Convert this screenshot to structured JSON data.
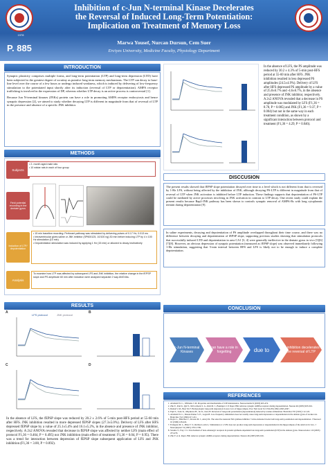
{
  "header": {
    "title_lines": [
      "Inhibition of c-Jun N-terminal Kinase Decelerates",
      "the Reversal of Induced Long-Term Potentiation:",
      "Implication on Treatment of Memory Loss"
    ],
    "poster_number": "P. 885",
    "authors": "Marwa Yousef, Nurcan Dursun, Cem Suer",
    "affiliation": "Erciyes University, Medicine Faculty, Physiology Department",
    "logo_left_year": "1978",
    "colors": {
      "header_blue": "#2a5fa8",
      "logo_red": "#c0302a"
    }
  },
  "introduction": {
    "heading": "INTRODUCTION",
    "paragraphs": [
      "Synaptic plasticity comprises multiple forms, and long-term potentiation (LTP) and long-term depression (LTD) have been subjected to the greatest degree of scrutiny as putative long term memory mechanisms. The LTP can decay to base-line level over the course of a few hours or undergo induced weakness, which is induced by delivering of low-frequency stimulation to the potentiated input shortly after its induction (reversal of LTP or depotentiation). AMPA receptor trafficking is involved in the expression of DP, whereas whether LTP decay is an active process is controversial [1].",
      "Because Jun N-terminal kinases (JNKs) protein can have a role in promoting AMPA receptor endocytosis and hence synaptic depression [2], we aimed to study whether decaying LTP is different in magnitude from that of reversal of LTP in the presence and absence of a specific JNK inhibitor."
    ]
  },
  "methods": {
    "heading": "METHODS",
    "subjects_label": "Subjects",
    "subjects_items": [
      "2- month aged male rats",
      "10 wistar rats in each of four group"
    ],
    "recording_label": "Field potential recording in the dentate gyrus",
    "induction_label": "Induction of LTP/ depotentiation",
    "induction_items": [
      "15 min baseline recording: Perforant pathway was stimulated by delivering pulses of 0.17 Hz, 0.013 ms",
      "Intraventricular gives saline or JNK inhibitor (SP600125, 10/100 ng) 30 min before inducing LTP by 4 x 100 Hz stimulation (10 min)",
      "Depotentiation stimulation was induced by applying 1 Hz (15 min) or allowed to decay instinctively"
    ],
    "analysis_label": "Analysis",
    "analysis_item": "To examine how LTP was affected by subsequent LFS and JNK inhibition, the relative change in the fEPSP slope and PS amplitude 60 min after induction were analyzed separate 2 way ANOVAs."
  },
  "results": {
    "heading": "RESULTS",
    "panel_a_label": "A",
    "panel_b_label": "B",
    "panel_c_label": "C",
    "panel_d_label": "D",
    "legend_control": "LFS protocol",
    "legend_jnk": "JNK protocol",
    "text": "In the absence of LFS, the fEPSP slope was reduced by 20.2 ± 2.6% of 5-min post-HFS period at 55-60 min after HFS. JNK inhibition resulted in more depressed fEPSP slopes (27.3±5.0%). Delivery of LFS after HFS depressed fEPSP slope by a value of 25.1±5.4% and 16.1±5.2%, in the absence and presence of JNK inhibitor, respectively. A 2x2 ANOVA revealed that decrease in fEPSP slope was affected by neither LFS (main effect of protocol F1,36 = 0.464, P = 0.495) nor JNK inhibition (main effect of treatment: F1,36 = 0.04, P = 0.95). There was a trend for interaction between depression of fEPSP slope subsequent application of LFS and JNK inhibition (F1,36 = 3.00, P = 0.092)."
  },
  "right_top_text": "In the absence of LFS, the PS amplitude was reduced by 30.2 ± 4.3% of 5-min post-HFS period at 55-60 min after HFS. JNK inhibition resulted in less depressed PS amplitudes (24.5±4.9%). Delivery of LFS after HFS depressed PS amplitude by a value of 25.0±6.7% and -4.6±6.7%, in the absence and presence of JNK inhibitor, respectively. A 2x2 ANOVA revealed that a decrease in PS amplitude was modulated by LFS (F1,36 = 8.78, P = 0.005) and JNK (F1,36 = 9.37, P = 0.004) but not in the same way in each treatment condition, as shown by a significant interaction between protocol and treatment (F1,36 = 4.29, P = 0.046).",
  "discussion": {
    "heading": "DISCCUSION",
    "paragraphs": [
      "The present results showed that fEPSP slope potentiation decayed over time to a level which is not different from that is reversed by 1-Hz LFS, without being affected by the inhibition of JNK, although decaying PS-LTP is different in magnitude from that of reversal of LTP when JNK activation is inhibited before LTP induction. These findings supports that depotentiation of PS-LTP could be mediated by active processes involving in JNK activation in contrast to LTP decay. One recent study could explain the present results because Rap2-JNK pathway has been shown to controls synaptic removal of AMPA-Rs with long cytoplasmic termini during depotentiation [9].",
      "In saline experiments, decaying and depotentiation of PS amplitude overlapped throughout their time course, and there was no difference between decaying and depotentiation of fEPSP slope, supporting previous studies showing that stimulation protocols that successfully induced LTD and depotentiation in area CA1 [3, 4] were generally ineffective in the dentate gyrus in vivo [5][6][7][8]. However, an obvious depression of synaptic potentiation (measured as fEPSP slope) was observed immediately following 1-Hz stimulation, suggesting that 5-min interval between HFS and LFS is likely not to be enough to induce a complete depotentiation."
    ]
  },
  "conclusion": {
    "heading": "CONCLUSION",
    "steps": [
      "c-Jun N-terminal Kinases",
      "can have a role in forgetting",
      "due to",
      "its inhibition decelerates the reversal of LTP"
    ]
  },
  "references": {
    "heading": "REFERENCES",
    "items": [
      "Abraham W. C., Williams J. M. Properties and mechanisms of LTP maintenance. Neuroscientist 9 (2003) 463-474.",
      "Zhu Y., Pak D., Qin Y., McCormack S. G., Kim M. J., Baumgart J. P. Rap2-JNK removes synaptic AMPA receptors during depotentiation. Neuron 46 (2005) 905-916.",
      "Dudek S. M., Bear M. F. Homosynaptic long-term depression in area CA1 of hippocampus. Proc Natl Acad Sci USA 89 (1992) 4363-4367.",
      "Fujii S., Saito K., Miyakawa H., Ito K., Kato H. Reversal of long-term potentiation (depotentiation) induced by tetanus stimulation. Brain Res 555 (1991) 112-122.",
      "Abraham W. C., Mason-Parker S. E., Logan B. Low-frequency stimulation does not readily cause long-term depression or depotentiation in the dentate gyrus of awake rats. Brain Res 722 (1996) 217-221.",
      "Doyle C., Hölscher C., Rowan M. J., Anwyl R. The selective neuronal NO synthase inhibitor 7-nitro-indazole blocks both long-term potentiation and depotentiation. J Neurosci 16 (1996) 418-424.",
      "Errington M. L., Bliss T. V., Richter-Levin G. Stimulation at 1-5 Hz does not produce long-term depression or depotentiation in the hippocampus of the adult rat in vivo. J Neurophysiol 74 (1995) 1793-1799.",
      "Straube T., Frey J. U. Involvement of beta-adrenergic receptors in protein synthesis-dependent late long-term potentiation (LTP) in the dentate gyrus. Neuroscience 119 (2003) 473-479.",
      "Zhu Y. et al. Rap2-JNK removes synaptic AMPA receptors during depotentiation. Neuron 46 (2005) 905-916."
    ]
  }
}
